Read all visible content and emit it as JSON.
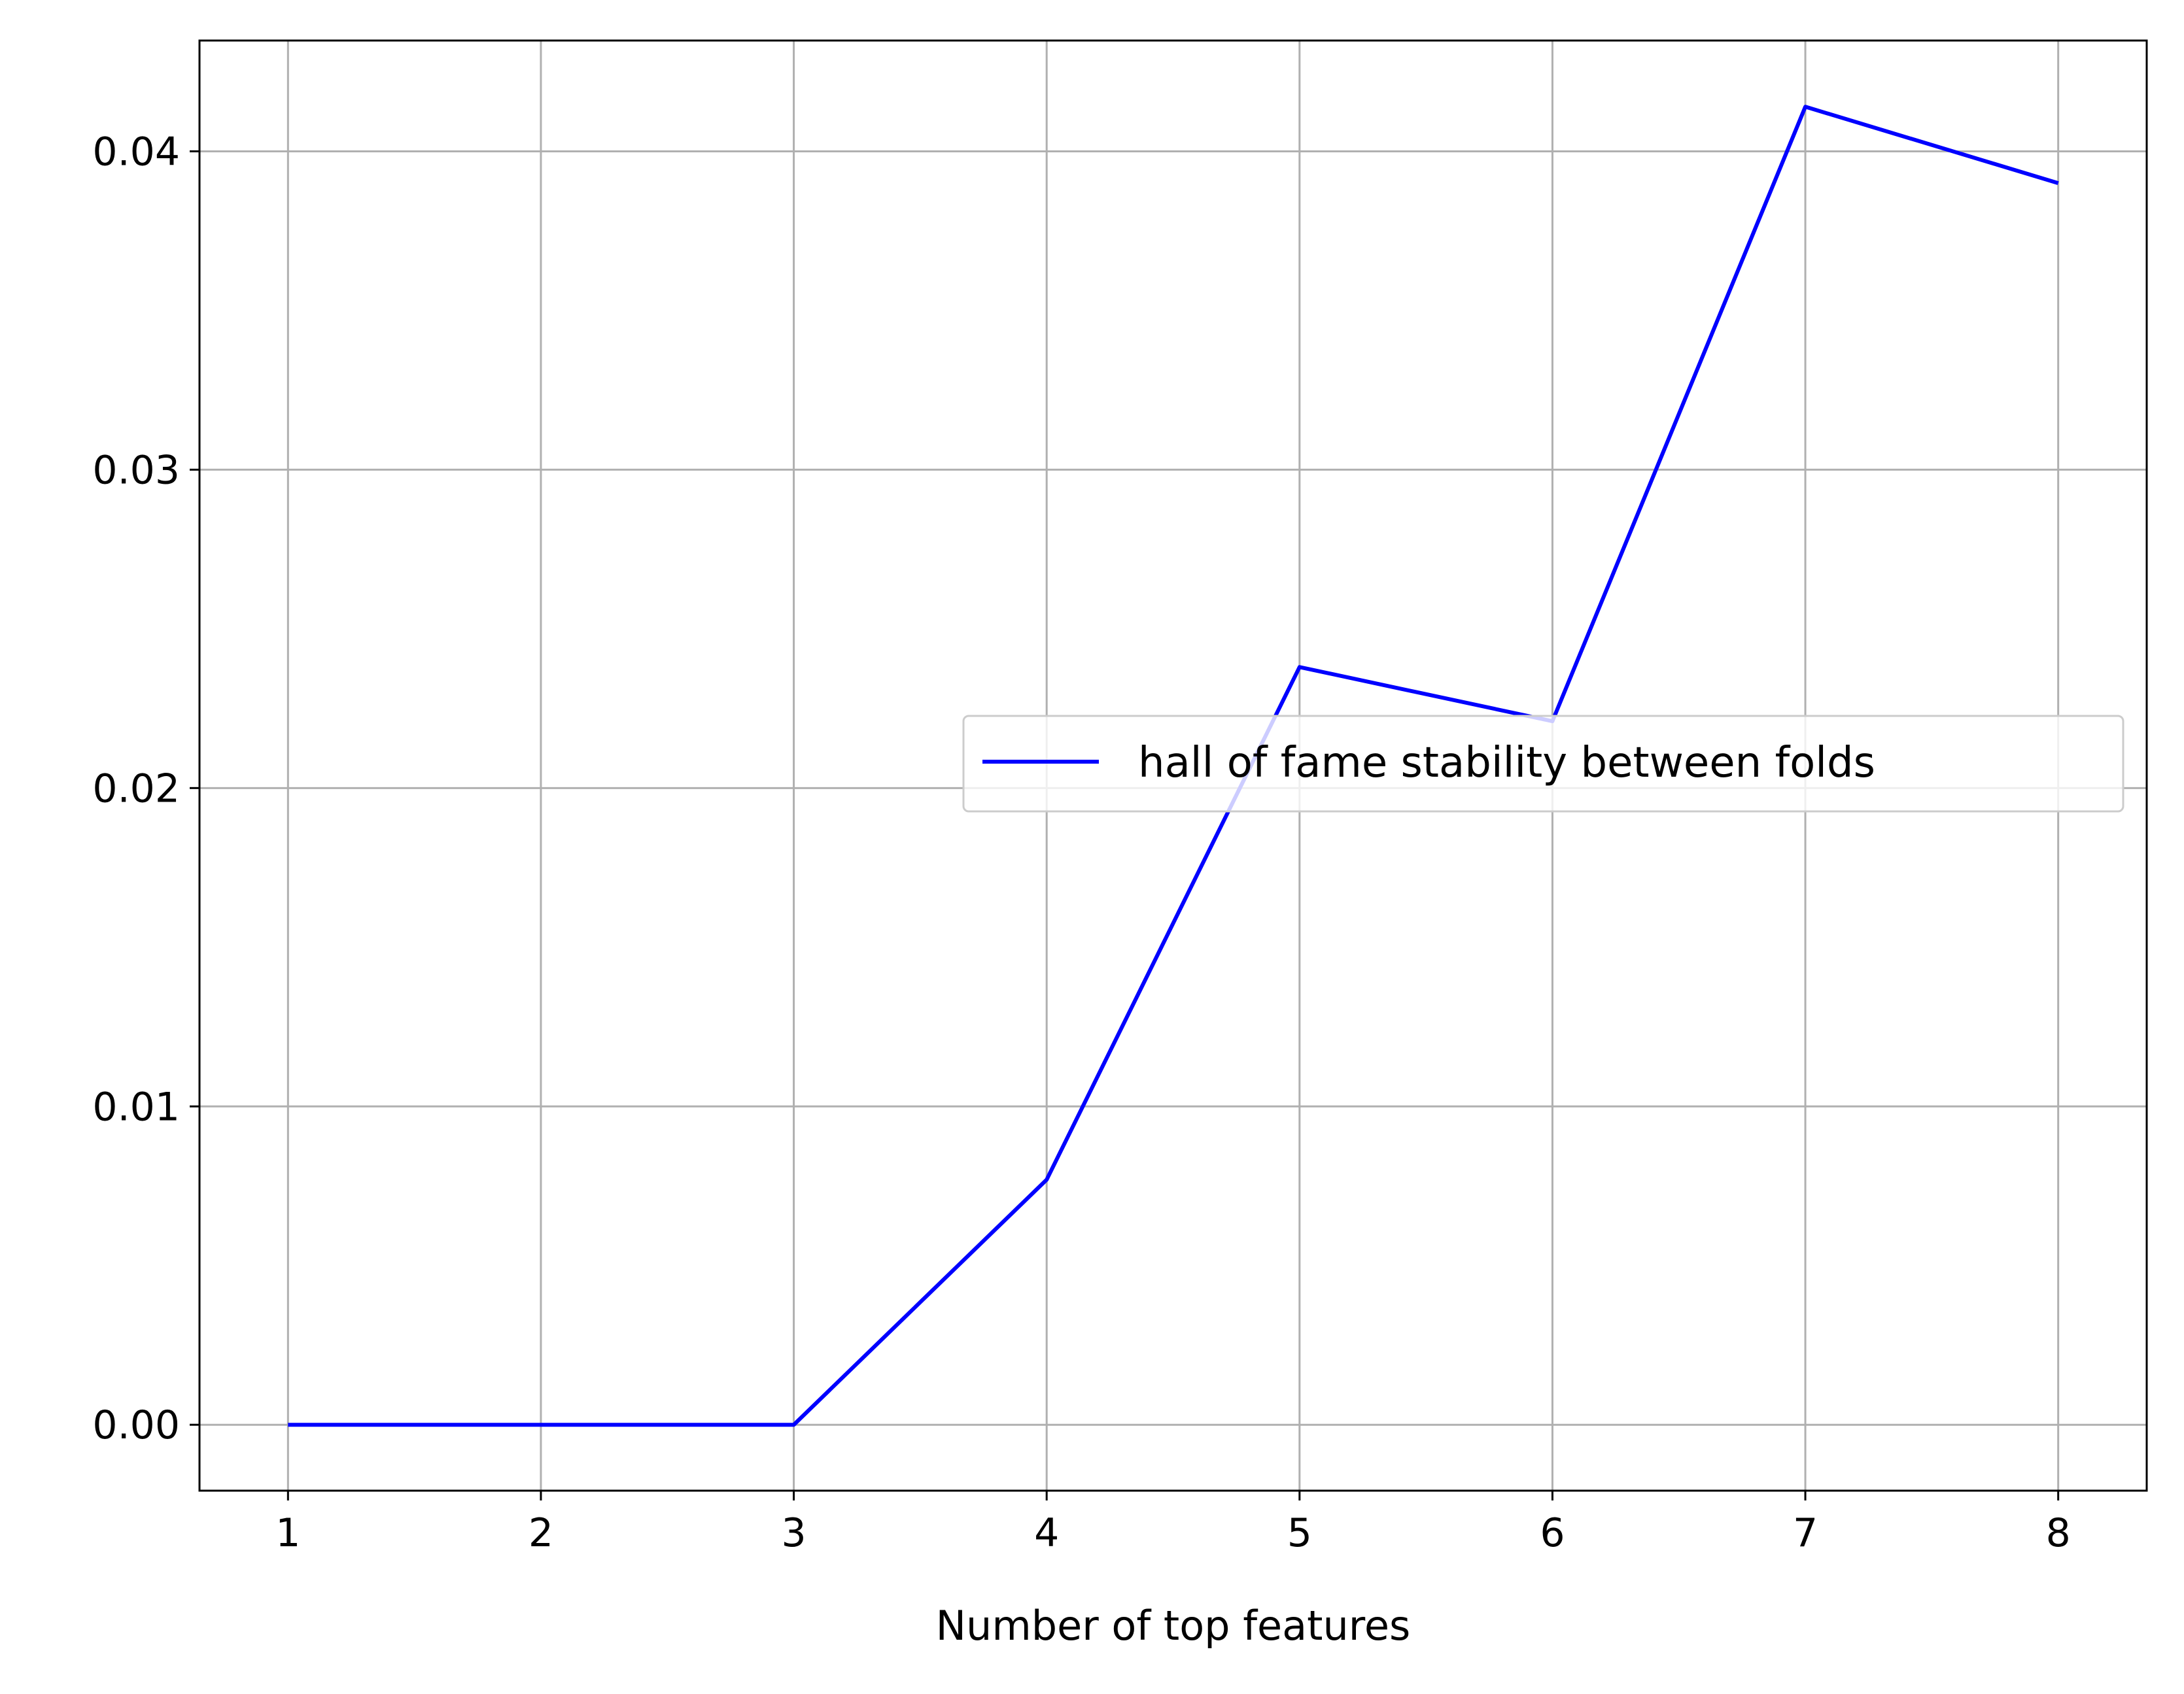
{
  "chart_data": {
    "type": "line",
    "title": "",
    "xlabel": "Number of top features",
    "ylabel": "",
    "x": [
      1,
      2,
      3,
      4,
      5,
      6,
      7,
      8
    ],
    "xlim": [
      0.65,
      8.35
    ],
    "ylim": [
      -0.00207,
      0.04348
    ],
    "xticks": [
      1,
      2,
      3,
      4,
      5,
      6,
      7,
      8
    ],
    "xtick_labels": [
      "1",
      "2",
      "3",
      "4",
      "5",
      "6",
      "7",
      "8"
    ],
    "yticks": [
      0.0,
      0.01,
      0.02,
      0.03,
      0.04
    ],
    "ytick_labels": [
      "0.00",
      "0.01",
      "0.02",
      "0.03",
      "0.04"
    ],
    "grid": true,
    "legend_position": "center-right",
    "series": [
      {
        "name": "hall of fame stability between folds",
        "color": "#0000ff",
        "values": [
          0.0,
          0.0,
          0.0,
          0.0077,
          0.0238,
          0.0221,
          0.0414,
          0.039
        ]
      }
    ]
  }
}
